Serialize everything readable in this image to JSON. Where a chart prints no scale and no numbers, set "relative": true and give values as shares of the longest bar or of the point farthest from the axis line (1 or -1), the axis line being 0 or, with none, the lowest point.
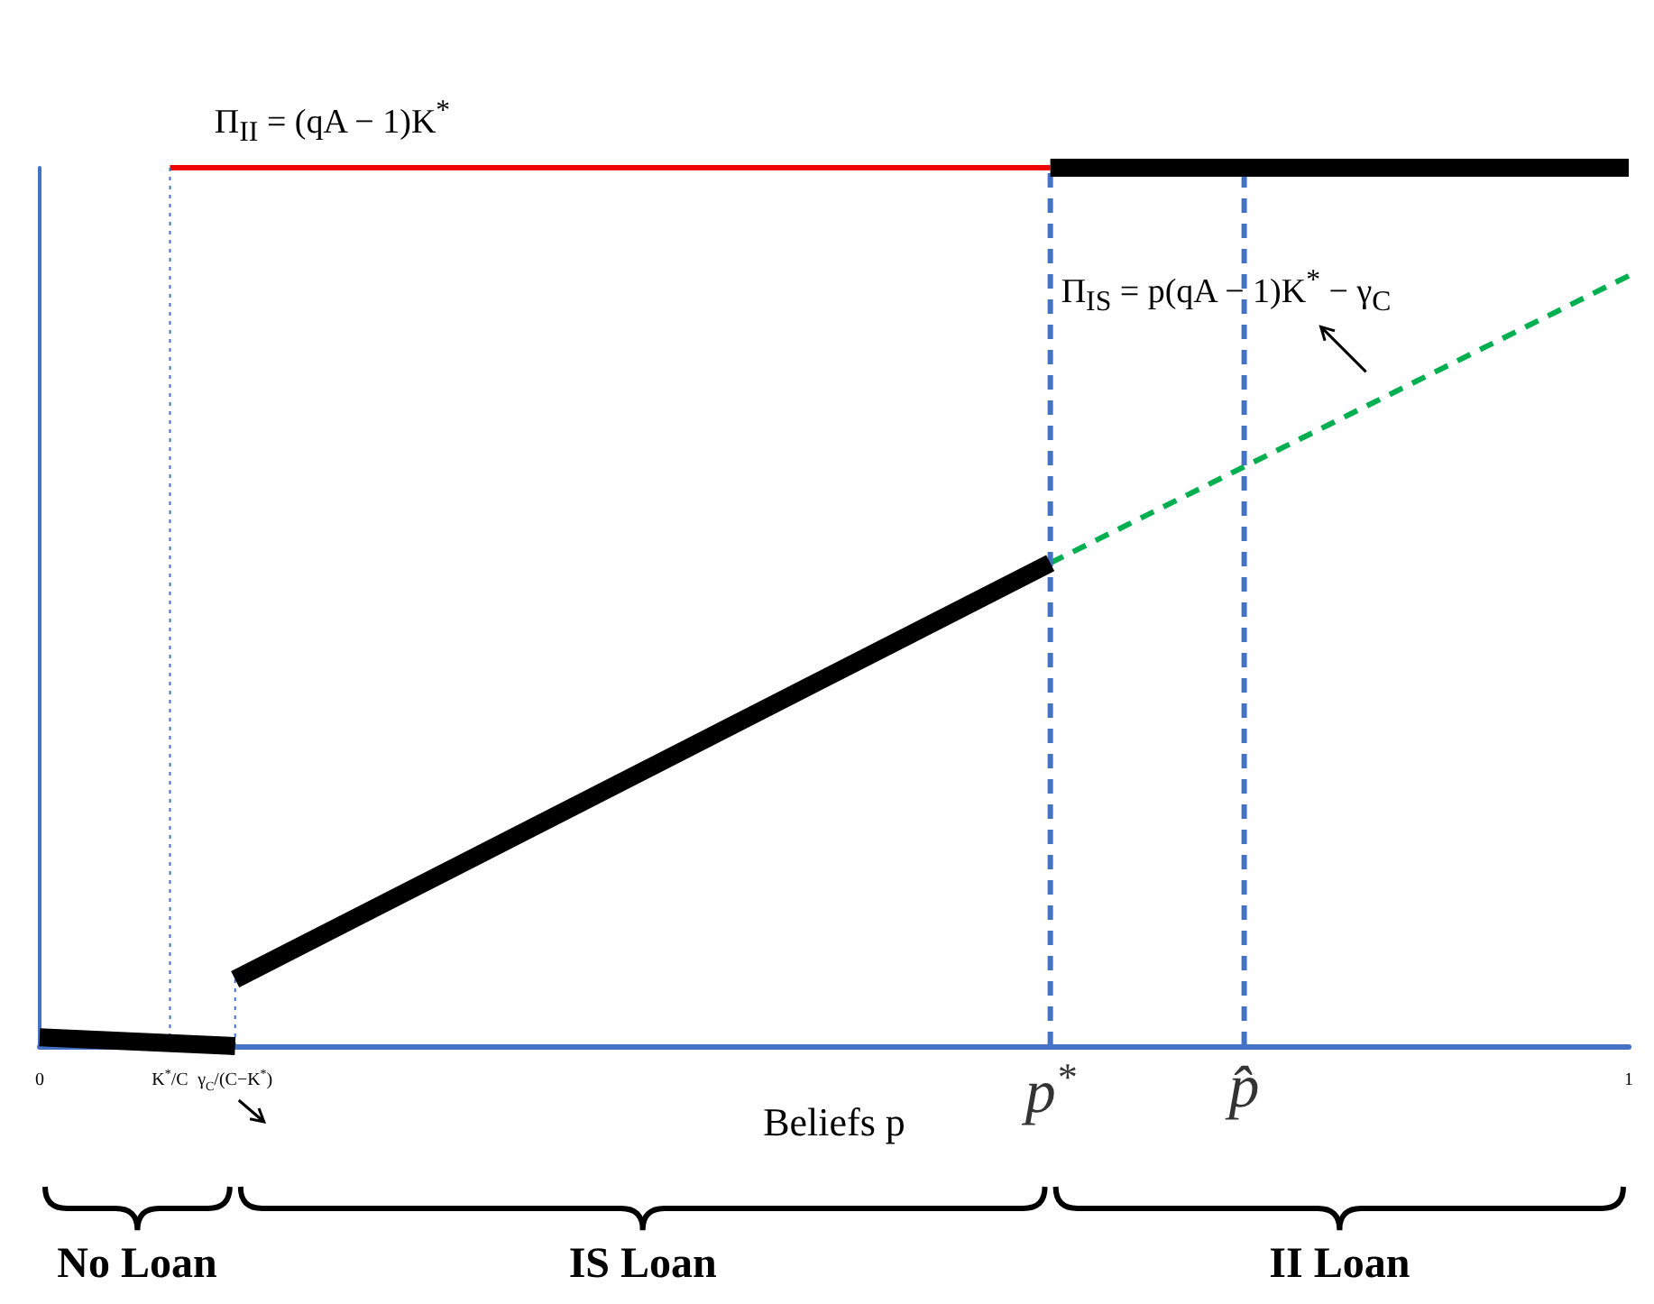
{
  "chart_data": {
    "type": "line",
    "relative": true,
    "xlabel": "Beliefs p",
    "xlim": [
      0,
      1
    ],
    "xticks": [
      0,
      {
        "value": 0.082,
        "label": "K$^{*}$/C"
      },
      {
        "value": 0.123,
        "label": "γ$_{C}$/(C−K$^{*}$)"
      },
      1
    ],
    "series": [
      {
        "color": "#000000",
        "x": [
          0,
          0.123
        ],
        "values": [
          0.01,
          0
        ]
      },
      {
        "color": "#000000",
        "x": [
          0.123,
          0.636
        ],
        "values": [
          0.076,
          0.55
        ]
      },
      {
        "color": "#000000",
        "x": [
          0.636,
          1
        ],
        "values": [
          1,
          1
        ]
      },
      {
        "color": "#ee0000",
        "x": [
          0.082,
          0.636
        ],
        "values": [
          1,
          1
        ]
      },
      {
        "color": "#00b050",
        "x": [
          0.636,
          1
        ],
        "values": [
          0.55,
          0.877
        ],
        "line_style": "dashed"
      },
      {
        "color": "#4472c4",
        "x": [
          0.082,
          0.082
        ],
        "values": [
          0,
          1
        ],
        "line_style": "dotted"
      },
      {
        "color": "#4472c4",
        "x": [
          0.123,
          0.123
        ],
        "values": [
          0,
          0.076
        ],
        "line_style": "dotted"
      }
    ],
    "ref_lines": [
      {
        "axis": "x",
        "value": 0.636,
        "label": "p$^{*}$",
        "color": "#4472c4",
        "line_style": "dashed"
      },
      {
        "axis": "x",
        "value": 0.758,
        "label": "p̂",
        "color": "#4472c4",
        "line_style": "dashed"
      }
    ],
    "annotations": [
      {
        "text": "Π$_{II}$ = (qA − 1)K$^{*}$",
        "x": 0.11,
        "y": 1
      },
      "Π$_{IS}$ = p(qA − 1)K$^{*}$ − γ$_{C}$",
      "No Loan",
      "IS Loan",
      "II Loan"
    ],
    "grid": false,
    "marker": "none",
    "line_style": "solid"
  }
}
